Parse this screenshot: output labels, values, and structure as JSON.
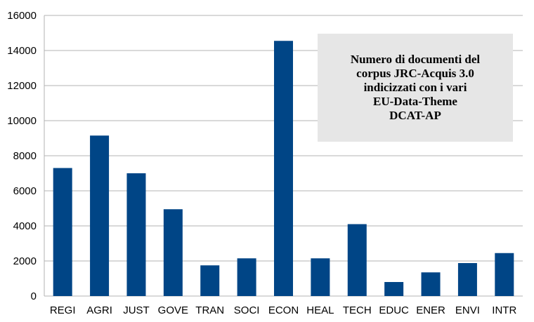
{
  "chart_data": {
    "type": "bar",
    "categories": [
      "REGI",
      "AGRI",
      "JUST",
      "GOVE",
      "TRAN",
      "SOCI",
      "ECON",
      "HEAL",
      "TECH",
      "EDUC",
      "ENER",
      "ENVI",
      "INTR"
    ],
    "series": [
      {
        "values": [
          7300,
          9150,
          7000,
          4950,
          1750,
          2150,
          14550,
          2150,
          4100,
          800,
          1350,
          1880,
          2450
        ]
      }
    ],
    "ylim": [
      0,
      16000
    ],
    "yticks": [
      0,
      2000,
      4000,
      6000,
      8000,
      10000,
      12000,
      14000,
      16000
    ],
    "grid": true,
    "title_lines": [
      "Numero di documenti del",
      "corpus JRC-Acquis 3.0",
      "indicizzati con i vari",
      "EU-Data-Theme",
      "DCAT-AP"
    ],
    "colors": {
      "bar": "#004586",
      "grid": "#b3b3b3",
      "title_bg": "#e6e6e6"
    }
  }
}
